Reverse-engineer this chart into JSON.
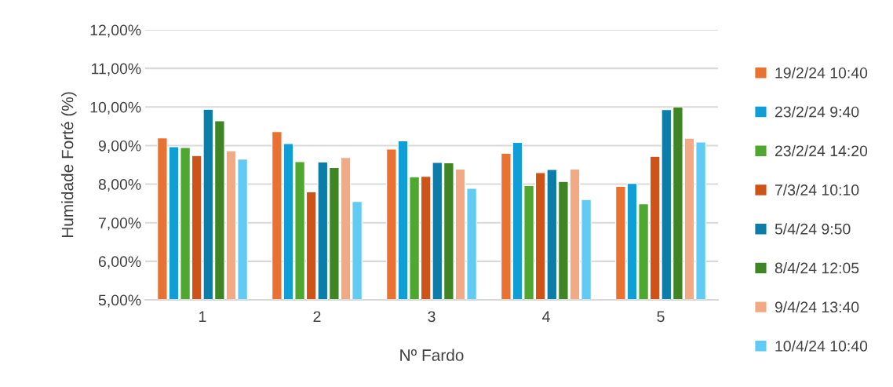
{
  "chart_data": {
    "type": "bar",
    "xlabel": "Nº Fardo",
    "ylabel": "Humidade Forté (%)",
    "categories": [
      "1",
      "2",
      "3",
      "4",
      "5"
    ],
    "ylim": [
      5,
      12
    ],
    "yticks": [
      {
        "value": 5,
        "label": "5,00%"
      },
      {
        "value": 6,
        "label": "6,00%"
      },
      {
        "value": 7,
        "label": "7,00%"
      },
      {
        "value": 8,
        "label": "8,00%"
      },
      {
        "value": 9,
        "label": "9,00%"
      },
      {
        "value": 10,
        "label": "10,00%"
      },
      {
        "value": 11,
        "label": "11,00%"
      },
      {
        "value": 12,
        "label": "12,00%"
      }
    ],
    "grid": "y",
    "legend": "right",
    "series": [
      {
        "name": "19/2/24 10:40",
        "color": "#e97132",
        "values": [
          9.2,
          9.36,
          8.91,
          8.8,
          7.94
        ]
      },
      {
        "name": "23/2/24 9:40",
        "color": "#0f9ed5",
        "values": [
          8.97,
          9.05,
          9.12,
          9.08,
          8.02
        ]
      },
      {
        "name": "23/2/24 14:20",
        "color": "#4ea72e",
        "values": [
          8.95,
          8.58,
          8.19,
          7.96,
          7.49
        ]
      },
      {
        "name": "7/3/24 10:10",
        "color": "#cd5416",
        "values": [
          8.74,
          7.8,
          8.2,
          8.3,
          8.72
        ]
      },
      {
        "name": "5/4/24 9:50",
        "color": "#0c7ca8",
        "values": [
          9.94,
          8.57,
          8.56,
          8.38,
          9.93
        ]
      },
      {
        "name": "8/4/24 12:05",
        "color": "#3f8526",
        "values": [
          9.64,
          8.43,
          8.55,
          8.07,
          10.0
        ]
      },
      {
        "name": "9/4/24 13:40",
        "color": "#f2aa84",
        "values": [
          8.86,
          8.69,
          8.39,
          8.39,
          9.19
        ]
      },
      {
        "name": "10/4/24 10:40",
        "color": "#61cbf3",
        "values": [
          8.65,
          7.55,
          7.89,
          7.6,
          9.09
        ]
      }
    ]
  }
}
